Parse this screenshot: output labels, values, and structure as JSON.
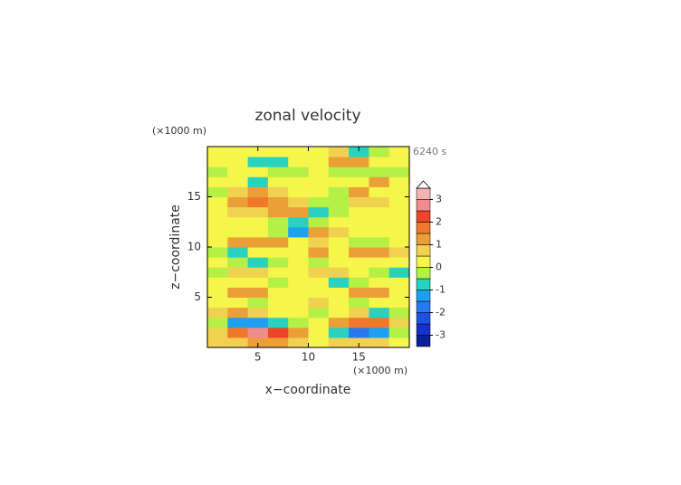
{
  "chart_data": {
    "type": "contour",
    "title": "zonal velocity",
    "x_unit": "(×1000 m)",
    "y_unit": "(×1000 m)",
    "time_label": "6240 s",
    "xlabel": "x−coordinate",
    "ylabel": "z−coordinate",
    "xlim": [
      0,
      20
    ],
    "ylim": [
      0,
      20
    ],
    "xticks": [
      5,
      10,
      15
    ],
    "yticks": [
      5,
      10,
      15
    ],
    "x": [
      1,
      3,
      5,
      7,
      9,
      11,
      13,
      15,
      17,
      19
    ],
    "y": [
      0.5,
      1.5,
      2.5,
      3.5,
      4.5,
      5.5,
      6.5,
      7.5,
      8.5,
      9.5,
      10.5,
      11.5,
      12.5,
      13.5,
      14.5,
      15.5,
      16.5,
      17.5,
      18.5,
      19.5
    ],
    "z": [
      [
        0.5,
        0.5,
        1,
        1,
        0.5,
        0.2,
        0.5,
        0.5,
        0.5,
        0.3
      ],
      [
        0.5,
        1.5,
        2.5,
        2,
        1,
        0.2,
        -1,
        -2,
        -1.5,
        -0.3
      ],
      [
        -0.5,
        -1.5,
        -1.5,
        -1,
        -0.3,
        0.3,
        1,
        1.5,
        1.5,
        0.5
      ],
      [
        0.5,
        1,
        0.5,
        0.2,
        0.3,
        -0.3,
        0.3,
        0.5,
        -1,
        -0.5
      ],
      [
        0.3,
        0.3,
        -0.3,
        0.2,
        0.3,
        0.5,
        0.2,
        -0.3,
        0.3,
        0.2
      ],
      [
        0.3,
        1,
        1,
        0.3,
        0.3,
        0.3,
        0.3,
        1,
        1,
        0.3
      ],
      [
        0.2,
        0.3,
        0.2,
        -0.3,
        0.2,
        0.2,
        -0.8,
        -0.3,
        0.3,
        0.3
      ],
      [
        -0.3,
        0.5,
        0.5,
        0.3,
        0.2,
        0.5,
        0.5,
        0.2,
        -0.3,
        -0.8
      ],
      [
        0.3,
        -0.3,
        -0.8,
        -0.5,
        0.3,
        -0.3,
        0.3,
        0.3,
        0.3,
        0.3
      ],
      [
        -0.5,
        -0.6,
        0.3,
        0.3,
        0.2,
        1,
        0.3,
        1,
        1,
        0.5
      ],
      [
        0.3,
        1,
        1,
        1,
        0.3,
        0.5,
        0.3,
        -0.3,
        -0.3,
        0.2
      ],
      [
        0.2,
        0.2,
        0.3,
        -0.3,
        -1.5,
        1,
        0.5,
        0.3,
        0.3,
        0.3
      ],
      [
        0.3,
        0.3,
        0.3,
        -0.5,
        -0.8,
        -0.3,
        0.2,
        0.3,
        0.3,
        0.3
      ],
      [
        0.3,
        0.5,
        0.5,
        1,
        1,
        -0.8,
        -0.5,
        0.3,
        0.3,
        0.3
      ],
      [
        0.3,
        1,
        1.5,
        1,
        0.5,
        -0.5,
        -0.3,
        0.5,
        0.5,
        0.3
      ],
      [
        -0.3,
        0.5,
        1,
        0.5,
        0.3,
        0.3,
        -0.3,
        1,
        0.3,
        0.2
      ],
      [
        0.3,
        0.3,
        -0.6,
        0.3,
        0.3,
        0.3,
        0.3,
        0.3,
        1,
        0.2
      ],
      [
        -0.3,
        0.3,
        0.3,
        -0.3,
        -0.3,
        0.3,
        -0.3,
        -0.3,
        -0.3,
        -0.2
      ],
      [
        0.3,
        0.3,
        -0.6,
        -0.8,
        0.3,
        0.3,
        1,
        1,
        0.3,
        0.3
      ],
      [
        0.3,
        0.2,
        0.3,
        0.3,
        0.3,
        0.3,
        0.5,
        -0.8,
        -0.3,
        0.3
      ]
    ],
    "levels": [
      -3.5,
      -3,
      -2.5,
      -2,
      -1.5,
      -1,
      -0.5,
      0,
      0.5,
      1,
      1.5,
      2,
      2.5,
      3,
      3.5
    ],
    "colors": [
      "#0a1e96",
      "#1432c8",
      "#1e50e6",
      "#2878f0",
      "#1ea0f0",
      "#28d2be",
      "#b4f046",
      "#f5f54b",
      "#f0d250",
      "#eba037",
      "#f07828",
      "#eb4628",
      "#f08c8c",
      "#f5b4b4"
    ],
    "cbarticks": [
      -3,
      -2,
      -1,
      0,
      1,
      2,
      3
    ]
  }
}
